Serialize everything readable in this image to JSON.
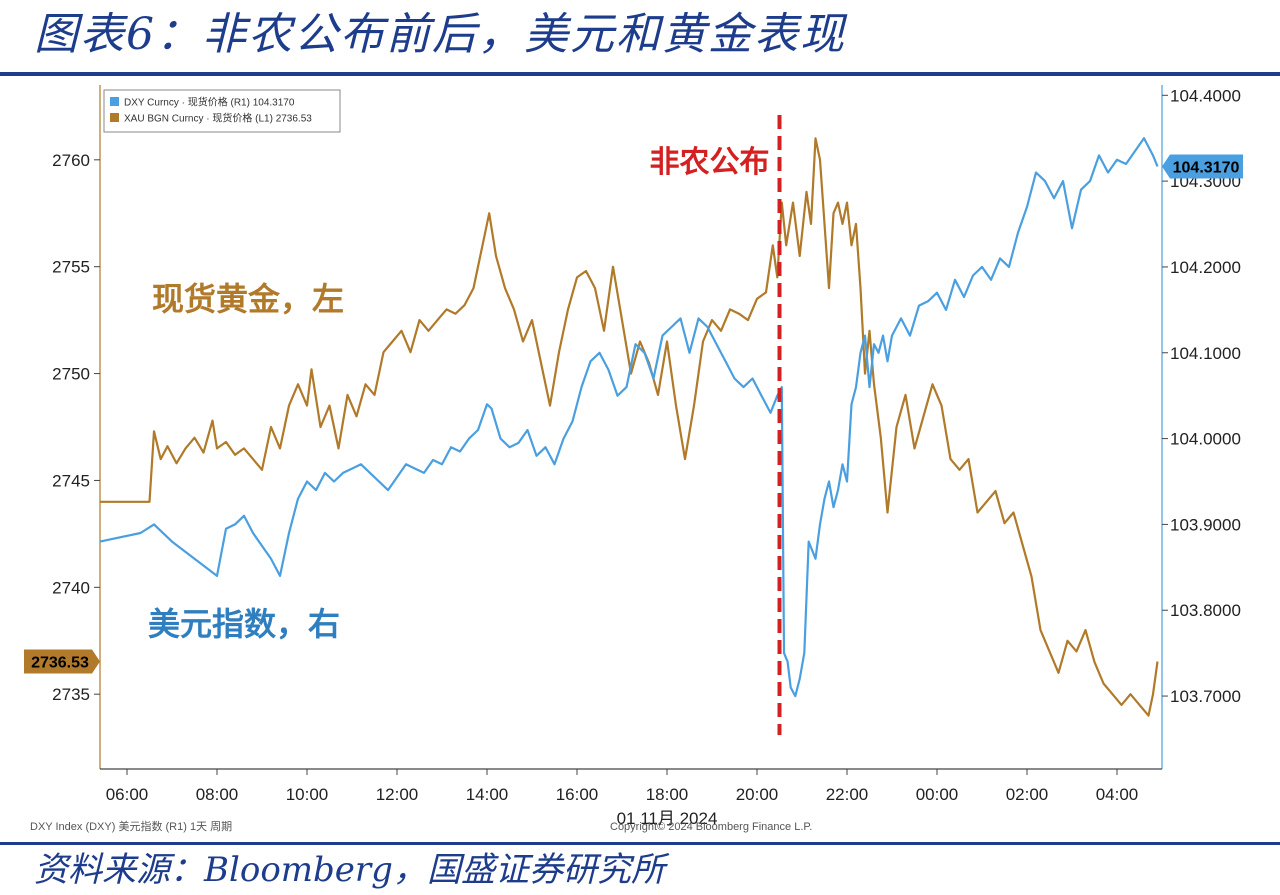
{
  "header": {
    "title": "图表6：非农公布前后，美元和黄金表现"
  },
  "footer": {
    "source": "资料来源：Bloomberg，国盛证券研究所"
  },
  "chart_data": {
    "type": "line",
    "x_unit": "hours",
    "xlim": [
      5.4,
      29.0
    ],
    "x_ticks": [
      {
        "x": 6,
        "label": "06:00"
      },
      {
        "x": 8,
        "label": "08:00"
      },
      {
        "x": 10,
        "label": "10:00"
      },
      {
        "x": 12,
        "label": "12:00"
      },
      {
        "x": 14,
        "label": "14:00"
      },
      {
        "x": 16,
        "label": "16:00"
      },
      {
        "x": 18,
        "label": "18:00"
      },
      {
        "x": 20,
        "label": "20:00"
      },
      {
        "x": 22,
        "label": "22:00"
      },
      {
        "x": 24,
        "label": "00:00"
      },
      {
        "x": 26,
        "label": "02:00"
      },
      {
        "x": 28,
        "label": "04:00"
      }
    ],
    "x_date_label": "01 11月 2024",
    "left_axis": {
      "ylim": [
        2731.5,
        2763.5
      ],
      "ticks": [
        2735,
        2740,
        2745,
        2750,
        2755,
        2760
      ],
      "badge": "2736.53",
      "badge_value": 2736.53,
      "badge_color": "#b07a2a"
    },
    "right_axis": {
      "ylim": [
        103.615,
        104.412
      ],
      "ticks": [
        "103.7000",
        "103.8000",
        "103.9000",
        "104.0000",
        "104.1000",
        "104.2000",
        "104.3000",
        "104.4000"
      ],
      "badge": "104.3170",
      "badge_value": 104.317,
      "badge_color": "#4a9fe0"
    },
    "event_line": {
      "x": 20.5,
      "label": "非农公布",
      "color": "#d42020"
    },
    "series": [
      {
        "name": "现货黄金，左",
        "legend": "XAU BGN Curncy · 现货价格 (L1)  2736.53",
        "axis": "left",
        "color": "#b07a2a",
        "label_color": "#b07a2a",
        "x": [
          5.4,
          6.5,
          6.6,
          6.75,
          6.9,
          7.1,
          7.3,
          7.5,
          7.7,
          7.9,
          8.0,
          8.2,
          8.4,
          8.6,
          8.8,
          9.0,
          9.2,
          9.4,
          9.6,
          9.8,
          10.0,
          10.1,
          10.3,
          10.5,
          10.7,
          10.9,
          11.1,
          11.3,
          11.5,
          11.7,
          11.9,
          12.1,
          12.3,
          12.5,
          12.7,
          12.9,
          13.1,
          13.3,
          13.5,
          13.7,
          13.9,
          14.05,
          14.2,
          14.4,
          14.6,
          14.8,
          15.0,
          15.2,
          15.4,
          15.6,
          15.8,
          16.0,
          16.2,
          16.4,
          16.6,
          16.8,
          17.0,
          17.2,
          17.4,
          17.6,
          17.8,
          18.0,
          18.2,
          18.4,
          18.6,
          18.8,
          19.0,
          19.2,
          19.4,
          19.6,
          19.8,
          20.0,
          20.2,
          20.35,
          20.45,
          20.55,
          20.65,
          20.8,
          20.95,
          21.1,
          21.2,
          21.3,
          21.4,
          21.5,
          21.6,
          21.7,
          21.8,
          21.9,
          22.0,
          22.1,
          22.2,
          22.3,
          22.4,
          22.5,
          22.6,
          22.75,
          22.9,
          23.1,
          23.3,
          23.5,
          23.7,
          23.9,
          24.1,
          24.3,
          24.5,
          24.7,
          24.9,
          25.1,
          25.3,
          25.5,
          25.7,
          25.9,
          26.1,
          26.3,
          26.5,
          26.7,
          26.9,
          27.1,
          27.3,
          27.5,
          27.7,
          27.9,
          28.1,
          28.3,
          28.5,
          28.7,
          28.8,
          28.9
        ],
        "y": [
          2744.0,
          2744.0,
          2747.3,
          2746.0,
          2746.6,
          2745.8,
          2746.5,
          2747.0,
          2746.3,
          2747.8,
          2746.5,
          2746.8,
          2746.2,
          2746.5,
          2746.0,
          2745.5,
          2747.5,
          2746.5,
          2748.5,
          2749.5,
          2748.5,
          2750.2,
          2747.5,
          2748.5,
          2746.5,
          2749.0,
          2748.0,
          2749.5,
          2749.0,
          2751.0,
          2751.5,
          2752.0,
          2751.0,
          2752.5,
          2752.0,
          2752.5,
          2753.0,
          2752.8,
          2753.2,
          2754.0,
          2756.0,
          2757.5,
          2755.5,
          2754.0,
          2753.0,
          2751.5,
          2752.5,
          2750.5,
          2748.5,
          2751.0,
          2753.0,
          2754.5,
          2754.8,
          2754.0,
          2752.0,
          2755.0,
          2752.5,
          2750.0,
          2751.5,
          2750.5,
          2749.0,
          2751.5,
          2748.5,
          2746.0,
          2748.5,
          2751.5,
          2752.5,
          2752.0,
          2753.0,
          2752.8,
          2752.5,
          2753.5,
          2753.8,
          2756.0,
          2754.5,
          2758.0,
          2756.0,
          2758.0,
          2755.5,
          2758.5,
          2757.0,
          2761.0,
          2760.0,
          2757.0,
          2754.0,
          2757.5,
          2758.0,
          2757.0,
          2758.0,
          2756.0,
          2757.0,
          2754.0,
          2750.0,
          2752.0,
          2749.5,
          2747.0,
          2743.5,
          2747.5,
          2749.0,
          2746.5,
          2748.0,
          2749.5,
          2748.5,
          2746.0,
          2745.5,
          2746.0,
          2743.5,
          2744.0,
          2744.5,
          2743.0,
          2743.5,
          2742.0,
          2740.5,
          2738.0,
          2737.0,
          2736.0,
          2737.5,
          2737.0,
          2738.0,
          2736.5,
          2735.5,
          2735.0,
          2734.5,
          2735.0,
          2734.5,
          2734.0,
          2735.0,
          2736.53
        ]
      },
      {
        "name": "美元指数，右",
        "legend": "DXY Curncy · 现货价格 (R1)  104.3170",
        "axis": "right",
        "color": "#4a9fe0",
        "label_color": "#2f7fc0",
        "x": [
          5.4,
          6.3,
          6.6,
          7.0,
          7.5,
          8.0,
          8.2,
          8.4,
          8.6,
          8.8,
          9.0,
          9.2,
          9.4,
          9.6,
          9.8,
          10.0,
          10.2,
          10.4,
          10.6,
          10.8,
          11.0,
          11.2,
          11.4,
          11.6,
          11.8,
          12.0,
          12.2,
          12.4,
          12.6,
          12.8,
          13.0,
          13.2,
          13.4,
          13.6,
          13.8,
          14.0,
          14.1,
          14.3,
          14.5,
          14.7,
          14.9,
          15.1,
          15.3,
          15.5,
          15.7,
          15.9,
          16.1,
          16.3,
          16.5,
          16.7,
          16.9,
          17.1,
          17.3,
          17.5,
          17.7,
          17.9,
          18.1,
          18.3,
          18.5,
          18.7,
          18.9,
          19.1,
          19.3,
          19.5,
          19.7,
          19.9,
          20.1,
          20.3,
          20.45,
          20.55,
          20.6,
          20.68,
          20.75,
          20.85,
          20.95,
          21.05,
          21.15,
          21.3,
          21.4,
          21.5,
          21.6,
          21.7,
          21.8,
          21.9,
          22.0,
          22.1,
          22.2,
          22.3,
          22.4,
          22.5,
          22.6,
          22.7,
          22.8,
          22.9,
          23.0,
          23.2,
          23.4,
          23.6,
          23.8,
          24.0,
          24.2,
          24.4,
          24.6,
          24.8,
          25.0,
          25.2,
          25.4,
          25.6,
          25.8,
          26.0,
          26.2,
          26.4,
          26.6,
          26.8,
          27.0,
          27.2,
          27.4,
          27.6,
          27.8,
          28.0,
          28.2,
          28.4,
          28.6,
          28.8,
          28.9
        ],
        "y": [
          103.88,
          103.89,
          103.9,
          103.88,
          103.86,
          103.84,
          103.895,
          103.9,
          103.91,
          103.89,
          103.875,
          103.86,
          103.84,
          103.89,
          103.93,
          103.95,
          103.94,
          103.96,
          103.95,
          103.96,
          103.965,
          103.97,
          103.96,
          103.95,
          103.94,
          103.955,
          103.97,
          103.965,
          103.96,
          103.975,
          103.97,
          103.99,
          103.985,
          104.0,
          104.01,
          104.04,
          104.035,
          104.0,
          103.99,
          103.995,
          104.01,
          103.98,
          103.99,
          103.97,
          104.0,
          104.02,
          104.06,
          104.09,
          104.1,
          104.08,
          104.05,
          104.06,
          104.11,
          104.1,
          104.07,
          104.12,
          104.13,
          104.14,
          104.1,
          104.14,
          104.13,
          104.11,
          104.09,
          104.07,
          104.06,
          104.07,
          104.05,
          104.03,
          104.05,
          104.06,
          103.75,
          103.74,
          103.71,
          103.7,
          103.72,
          103.75,
          103.88,
          103.86,
          103.9,
          103.93,
          103.95,
          103.92,
          103.94,
          103.97,
          103.95,
          104.04,
          104.06,
          104.1,
          104.12,
          104.06,
          104.11,
          104.1,
          104.12,
          104.09,
          104.12,
          104.14,
          104.12,
          104.155,
          104.16,
          104.17,
          104.15,
          104.185,
          104.165,
          104.19,
          104.2,
          104.185,
          104.21,
          104.2,
          104.24,
          104.27,
          104.31,
          104.3,
          104.28,
          104.3,
          104.245,
          104.29,
          104.3,
          104.33,
          104.31,
          104.325,
          104.32,
          104.335,
          104.35,
          104.33,
          104.317
        ]
      }
    ],
    "footnote_left": "DXY Index (DXY) 美元指数 (R1) 1天 周期",
    "footnote_right": "Copyright© 2024 Bloomberg Finance L.P.",
    "grid": false,
    "legend_position": "top-left"
  }
}
